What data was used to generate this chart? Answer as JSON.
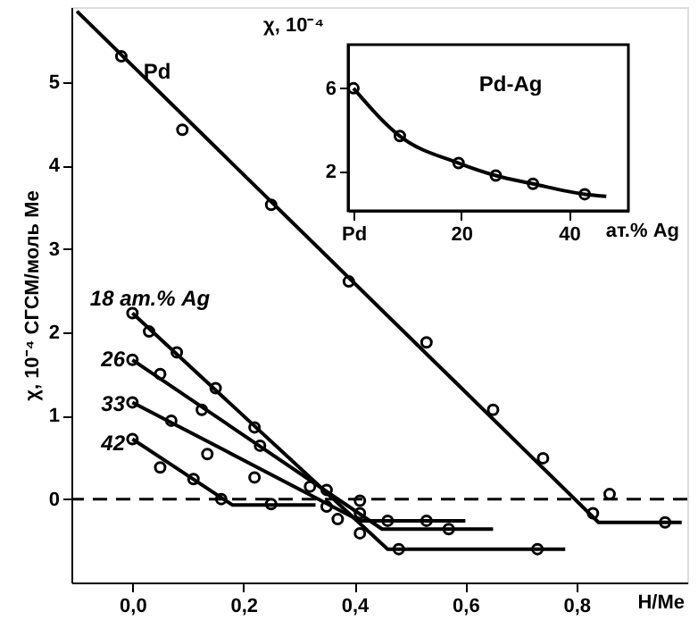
{
  "chart_data": [
    {
      "type": "scatter",
      "xlabel": "H/Me",
      "ylabel": "χ, 10⁻⁴ СГСМ/моль Me",
      "xlim": [
        -0.11,
        1.0
      ],
      "ylim": [
        -1.0,
        5.9
      ],
      "xticks": [
        {
          "value": 0,
          "label": "0,0"
        },
        {
          "value": 0.2,
          "label": "0,2"
        },
        {
          "value": 0.4,
          "label": "0,4"
        },
        {
          "value": 0.6,
          "label": "0,6"
        },
        {
          "value": 0.8,
          "label": "0,8"
        }
      ],
      "yticks": [
        0,
        1,
        2,
        3,
        4,
        5
      ],
      "ref_lines": [
        {
          "axis": "y",
          "value": 0,
          "color": "#000000",
          "line_style": "dashed"
        }
      ],
      "annotations": [
        "Pd",
        "18 ат.% Ag",
        "26",
        "33",
        "42"
      ],
      "series": [
        {
          "type": "line",
          "color": "#000000",
          "marker": "none",
          "x": [
            -0.1,
            0.84,
            0.99
          ],
          "values": [
            5.85,
            -0.28,
            -0.28
          ]
        },
        {
          "color": "#000000",
          "marker": "circle",
          "x": [
            -0.02,
            0.09,
            0.25,
            0.39,
            0.53,
            0.65,
            0.74,
            0.83,
            0.86,
            0.96
          ],
          "values": [
            5.31,
            4.43,
            3.53,
            2.61,
            1.88,
            1.07,
            0.49,
            -0.17,
            0.06,
            -0.28
          ]
        },
        {
          "type": "line",
          "color": "#000000",
          "marker": "none",
          "x": [
            0.0,
            0.46,
            0.78
          ],
          "values": [
            2.23,
            -0.6,
            -0.6
          ]
        },
        {
          "color": "#000000",
          "marker": "circle",
          "x": [
            0.0,
            0.03,
            0.08,
            0.15,
            0.22,
            0.35,
            0.41,
            0.48,
            0.73
          ],
          "values": [
            2.23,
            2.01,
            1.76,
            1.33,
            0.86,
            0.11,
            -0.41,
            -0.6,
            -0.6
          ]
        },
        {
          "type": "line",
          "color": "#000000",
          "marker": "none",
          "x": [
            0.0,
            0.45,
            0.65
          ],
          "values": [
            1.67,
            -0.36,
            -0.36
          ]
        },
        {
          "color": "#000000",
          "marker": "circle",
          "x": [
            0.0,
            0.05,
            0.125,
            0.23,
            0.41,
            0.57
          ],
          "values": [
            1.67,
            1.5,
            1.07,
            0.64,
            -0.17,
            -0.36
          ]
        },
        {
          "type": "line",
          "color": "#000000",
          "marker": "none",
          "x": [
            0.0,
            0.41,
            0.6
          ],
          "values": [
            1.16,
            -0.26,
            -0.26
          ]
        },
        {
          "color": "#000000",
          "marker": "circle",
          "x": [
            0.0,
            0.07,
            0.135,
            0.22,
            0.32,
            0.35,
            0.37,
            0.41,
            0.46,
            0.53
          ],
          "values": [
            1.16,
            0.94,
            0.54,
            0.26,
            0.15,
            -0.09,
            -0.24,
            -0.02,
            -0.26,
            -0.26
          ]
        },
        {
          "type": "line",
          "color": "#000000",
          "marker": "none",
          "x": [
            0.0,
            0.18,
            0.33
          ],
          "values": [
            0.72,
            -0.07,
            -0.07
          ]
        },
        {
          "color": "#000000",
          "marker": "circle",
          "x": [
            0.0,
            0.05,
            0.11,
            0.16,
            0.25
          ],
          "values": [
            0.72,
            0.38,
            0.24,
            0.0,
            -0.06
          ]
        }
      ]
    },
    {
      "type": "scatter",
      "xlabel": "ат.% Ag",
      "ylabel": "χ, 10⁻⁴",
      "xlim": [
        -1,
        51
      ],
      "ylim": [
        0.1,
        8.1
      ],
      "xticks": [
        {
          "value": 0,
          "label": "Pd"
        },
        20,
        40
      ],
      "yticks": [
        2,
        6
      ],
      "annotations": [
        "Pd-Ag"
      ],
      "series": [
        {
          "type": "line",
          "color": "#000000",
          "marker": "none",
          "x": [
            0,
            8.6,
            19.5,
            26.4,
            33.3,
            42.9,
            46.9
          ],
          "values": [
            6.0,
            3.7,
            2.4,
            1.8,
            1.4,
            0.9,
            0.8
          ]
        },
        {
          "color": "#000000",
          "marker": "circle",
          "x": [
            0,
            8.6,
            19.5,
            26.4,
            33.3,
            42.9
          ],
          "values": [
            6.0,
            3.7,
            2.4,
            1.8,
            1.4,
            0.9
          ]
        }
      ]
    }
  ]
}
